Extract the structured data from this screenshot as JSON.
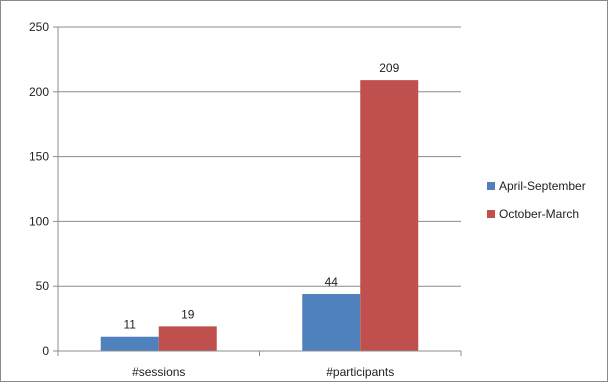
{
  "chart_data": {
    "type": "bar",
    "title": "",
    "xlabel": "",
    "ylabel": "",
    "categories": [
      "#sessions",
      "#participants"
    ],
    "series": [
      {
        "name": "April-September",
        "values": [
          11,
          44
        ],
        "color": "#4f81bd"
      },
      {
        "name": "October-March",
        "values": [
          19,
          209
        ],
        "color": "#c0504d"
      }
    ],
    "ylim": [
      0,
      250
    ],
    "yticks": [
      0,
      50,
      100,
      150,
      200,
      250
    ],
    "grid": true,
    "legend": "right",
    "data_labels": true
  }
}
